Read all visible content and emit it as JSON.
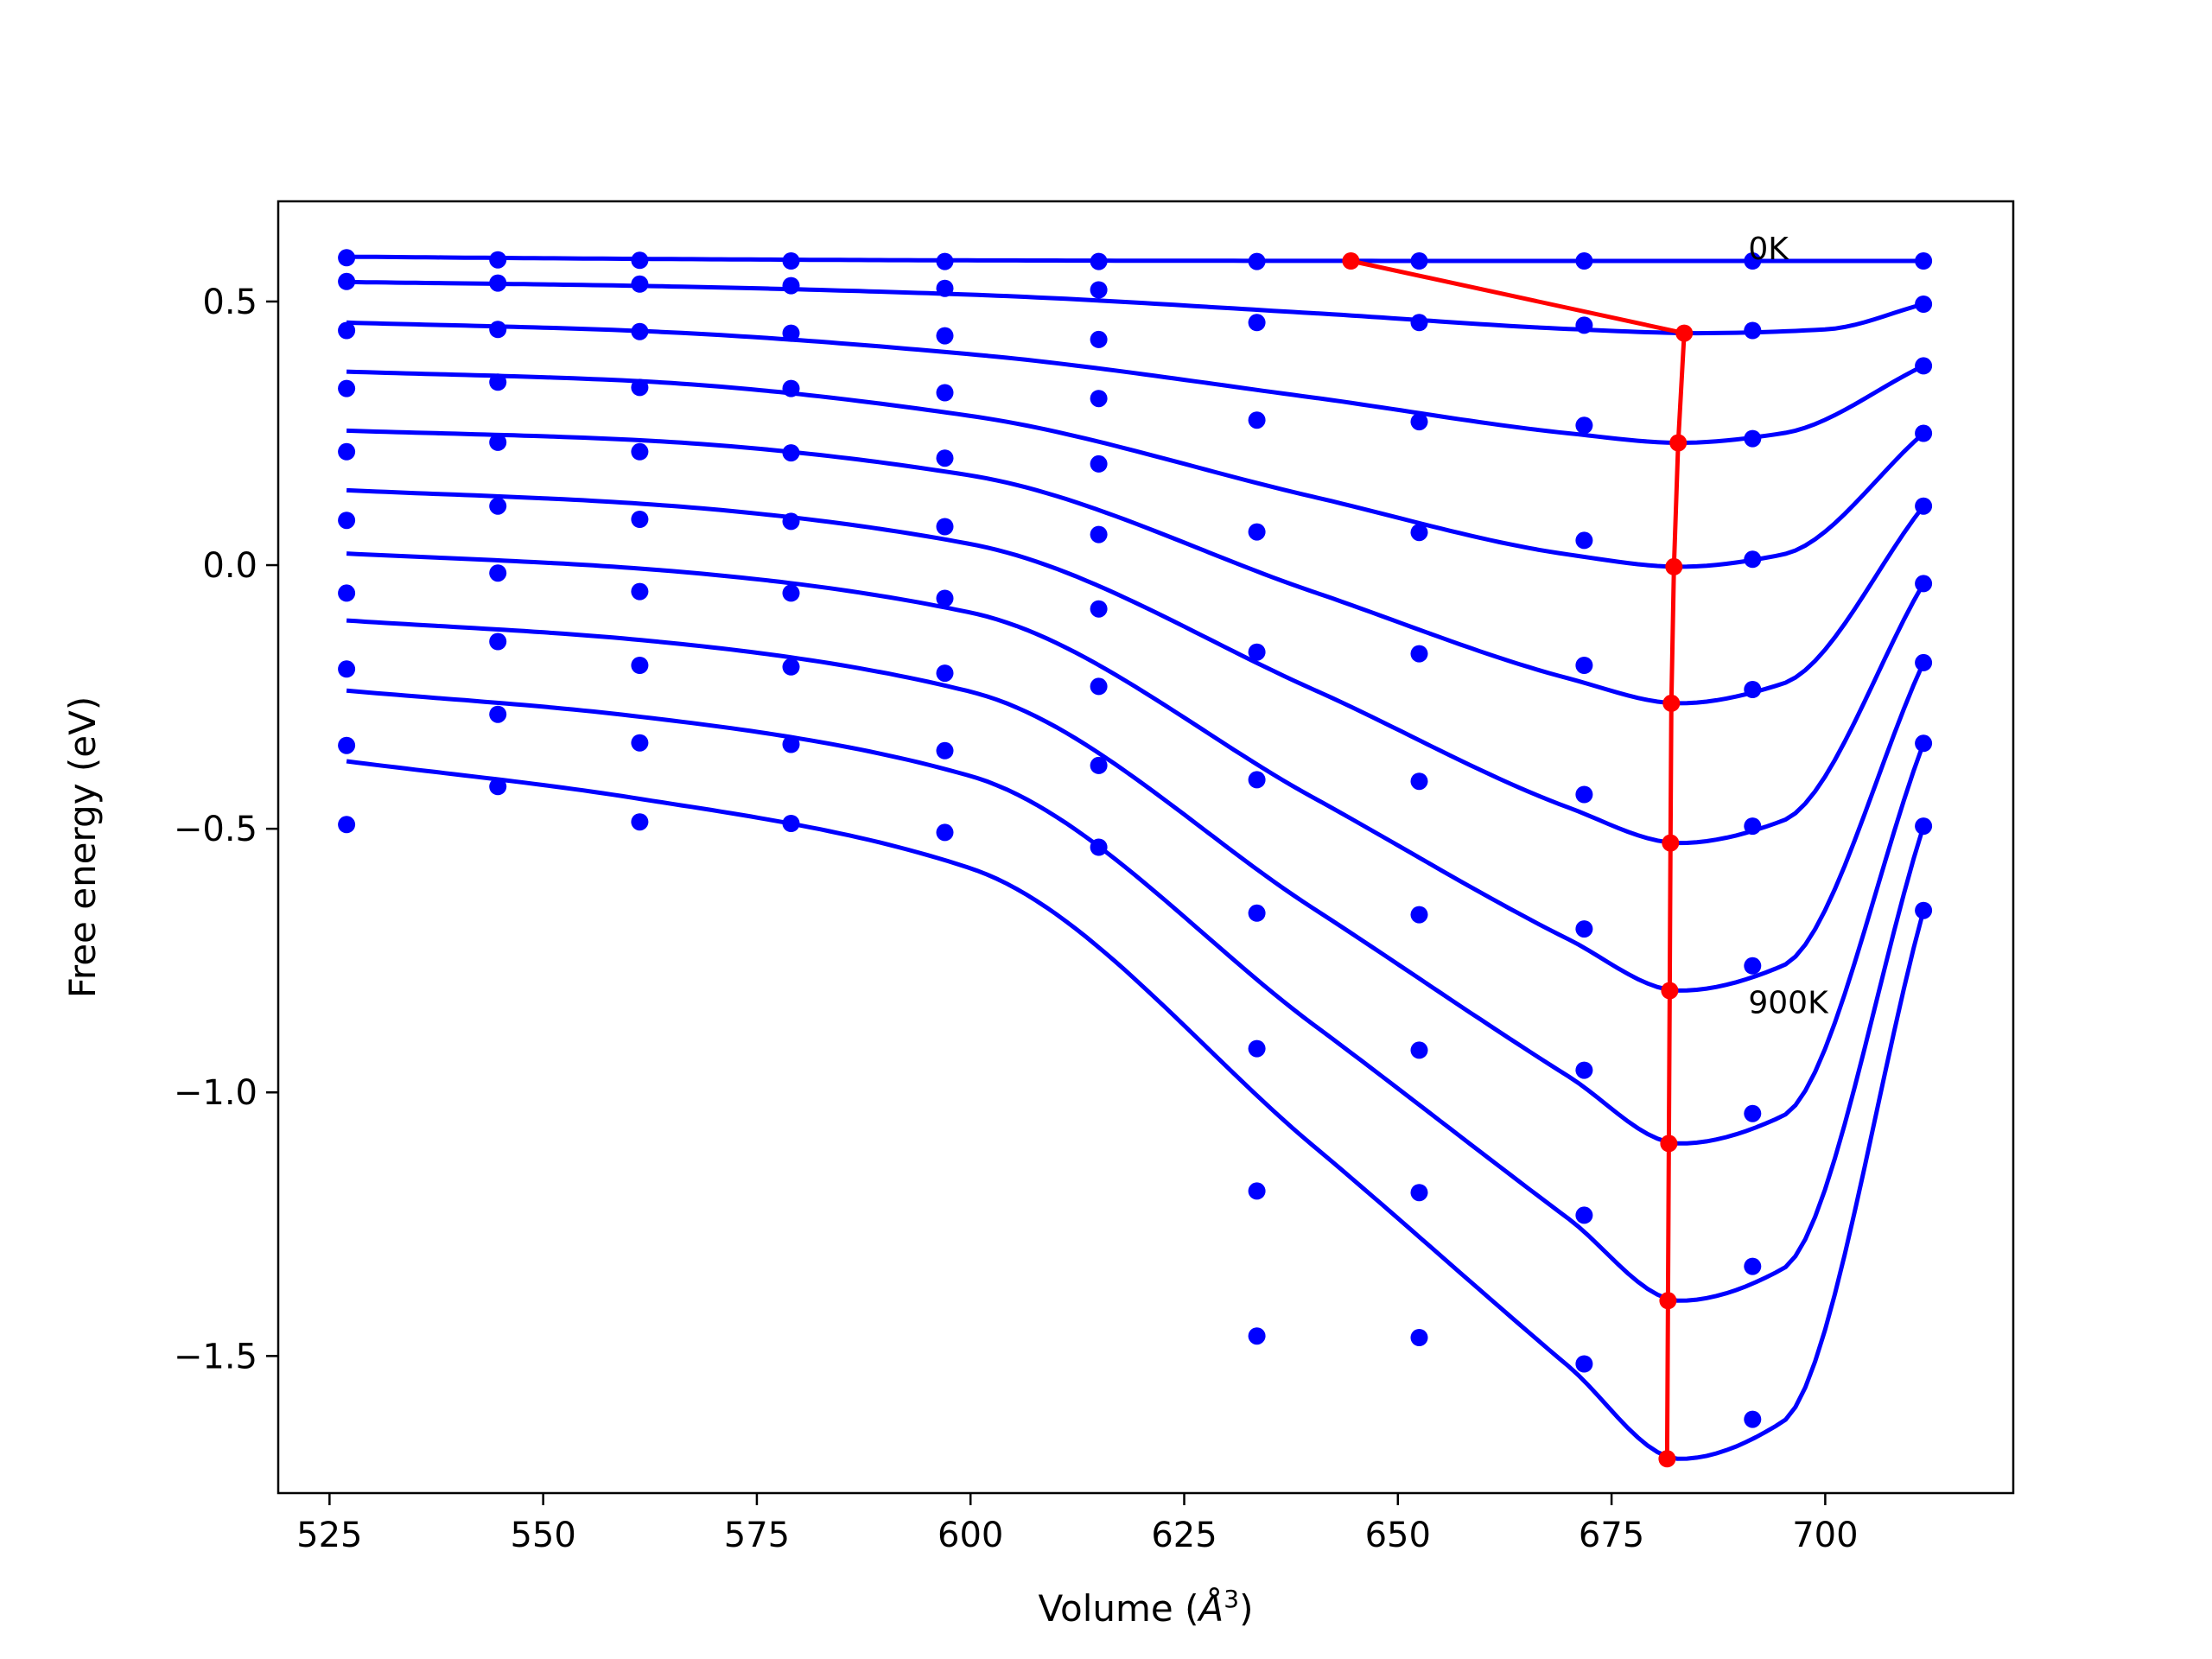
{
  "chart_data": {
    "type": "line",
    "title": "",
    "xlabel_prefix": "Volume (",
    "xlabel_unit_base": "Å",
    "xlabel_unit_exp": "3",
    "xlabel_suffix": ")",
    "ylabel": "Free energy (eV)",
    "xlim": [
      519,
      722
    ],
    "ylim": [
      -1.76,
      0.69
    ],
    "xticks": [
      525,
      550,
      575,
      600,
      625,
      650,
      675,
      700
    ],
    "xtick_labels": [
      "525",
      "550",
      "575",
      "600",
      "625",
      "650",
      "675",
      "700"
    ],
    "yticks": [
      -1.5,
      -1.0,
      -0.5,
      0.0,
      0.5
    ],
    "ytick_labels": [
      "−1.5",
      "−1.0",
      "−0.5",
      "0.0",
      "0.5"
    ],
    "grid": false,
    "colors": {
      "series": "#0000ff",
      "equilibrium": "#ff0000",
      "frame": "#000000"
    },
    "annotations": [
      {
        "text": "0K",
        "x": 691,
        "y": 0.6
      },
      {
        "text": "900K",
        "x": 691,
        "y": -0.83
      }
    ],
    "x": [
      527,
      544.7,
      561.3,
      579,
      597,
      615,
      633.5,
      652.5,
      671.8,
      691.5,
      711.5
    ],
    "series": [
      {
        "values": [
          0.583,
          0.579,
          0.578,
          0.577,
          0.576,
          0.576,
          0.576,
          0.577,
          0.577,
          0.577,
          0.577
        ],
        "curve": [
          [
            527,
            0.585
          ],
          [
            560,
            0.581
          ],
          [
            600,
            0.578
          ],
          [
            650,
            0.577
          ],
          [
            711.5,
            0.577
          ]
        ]
      },
      {
        "values": [
          0.538,
          0.535,
          0.533,
          0.53,
          0.525,
          0.522,
          0.46,
          0.46,
          0.455,
          0.445,
          0.495
        ],
        "curve": [
          [
            527,
            0.537
          ],
          [
            560,
            0.53
          ],
          [
            600,
            0.513
          ],
          [
            640,
            0.478
          ],
          [
            670,
            0.448
          ],
          [
            685,
            0.44
          ],
          [
            700,
            0.447
          ],
          [
            711.5,
            0.495
          ]
        ]
      },
      {
        "values": [
          0.445,
          0.447,
          0.443,
          0.44,
          0.435,
          0.428,
          0.275,
          0.272,
          0.265,
          0.24,
          0.378
        ],
        "curve": [
          [
            527,
            0.46
          ],
          [
            560,
            0.445
          ],
          [
            600,
            0.4
          ],
          [
            640,
            0.318
          ],
          [
            670,
            0.25
          ],
          [
            683,
            0.232
          ],
          [
            695,
            0.25
          ],
          [
            711.5,
            0.378
          ]
        ]
      },
      {
        "values": [
          0.335,
          0.347,
          0.337,
          0.335,
          0.327,
          0.316,
          0.063,
          0.062,
          0.047,
          0.011,
          0.25
        ],
        "curve": [
          [
            527,
            0.367
          ],
          [
            560,
            0.35
          ],
          [
            600,
            0.283
          ],
          [
            640,
            0.13
          ],
          [
            670,
            0.02
          ],
          [
            683,
            -0.003
          ],
          [
            695,
            0.02
          ],
          [
            711.5,
            0.25
          ]
        ]
      },
      {
        "values": [
          0.215,
          0.233,
          0.215,
          0.213,
          0.203,
          0.192,
          -0.165,
          -0.168,
          -0.19,
          -0.236,
          0.112
        ],
        "curve": [
          [
            527,
            0.255
          ],
          [
            560,
            0.238
          ],
          [
            600,
            0.17
          ],
          [
            640,
            -0.05
          ],
          [
            670,
            -0.215
          ],
          [
            683,
            -0.262
          ],
          [
            695,
            -0.225
          ],
          [
            711.5,
            0.112
          ]
        ]
      },
      {
        "values": [
          0.085,
          0.112,
          0.087,
          0.083,
          0.073,
          0.058,
          -0.407,
          -0.41,
          -0.435,
          -0.495,
          -0.035
        ],
        "curve": [
          [
            527,
            0.142
          ],
          [
            560,
            0.118
          ],
          [
            600,
            0.04
          ],
          [
            640,
            -0.235
          ],
          [
            670,
            -0.46
          ],
          [
            683,
            -0.527
          ],
          [
            695,
            -0.485
          ],
          [
            711.5,
            -0.035
          ]
        ]
      },
      {
        "values": [
          -0.053,
          -0.015,
          -0.05,
          -0.053,
          -0.063,
          -0.083,
          -0.66,
          -0.663,
          -0.69,
          -0.76,
          -0.185
        ],
        "curve": [
          [
            527,
            0.022
          ],
          [
            560,
            -0.005
          ],
          [
            600,
            -0.09
          ],
          [
            640,
            -0.44
          ],
          [
            670,
            -0.71
          ],
          [
            683,
            -0.807
          ],
          [
            695,
            -0.76
          ],
          [
            711.5,
            -0.185
          ]
        ]
      },
      {
        "values": [
          -0.197,
          -0.145,
          -0.19,
          -0.193,
          -0.205,
          -0.23,
          -0.917,
          -0.92,
          -0.958,
          -1.04,
          -0.338
        ],
        "curve": [
          [
            527,
            -0.105
          ],
          [
            560,
            -0.14
          ],
          [
            600,
            -0.24
          ],
          [
            640,
            -0.65
          ],
          [
            670,
            -0.97
          ],
          [
            683,
            -1.097
          ],
          [
            695,
            -1.045
          ],
          [
            711.5,
            -0.338
          ]
        ]
      },
      {
        "values": [
          -0.342,
          -0.283,
          -0.337,
          -0.34,
          -0.352,
          -0.38,
          -1.187,
          -1.19,
          -1.233,
          -1.33,
          -0.495
        ],
        "curve": [
          [
            527,
            -0.238
          ],
          [
            560,
            -0.285
          ],
          [
            600,
            -0.4
          ],
          [
            640,
            -0.87
          ],
          [
            670,
            -1.24
          ],
          [
            683,
            -1.395
          ],
          [
            695,
            -1.335
          ],
          [
            711.5,
            -0.495
          ]
        ]
      },
      {
        "values": [
          -0.492,
          -0.42,
          -0.487,
          -0.49,
          -0.507,
          -0.535,
          -1.462,
          -1.465,
          -1.515,
          -1.62,
          -0.655
        ],
        "curve": [
          [
            527,
            -0.372
          ],
          [
            560,
            -0.44
          ],
          [
            600,
            -0.575
          ],
          [
            640,
            -1.1
          ],
          [
            670,
            -1.52
          ],
          [
            683,
            -1.695
          ],
          [
            695,
            -1.625
          ],
          [
            711.5,
            -0.655
          ]
        ]
      }
    ],
    "equilibrium": {
      "x": [
        644.5,
        683.5,
        682.8,
        682.3,
        682.0,
        681.9,
        681.8,
        681.7,
        681.6,
        681.5
      ],
      "y": [
        0.577,
        0.44,
        0.232,
        -0.003,
        -0.262,
        -0.527,
        -0.807,
        -1.097,
        -1.395,
        -1.695
      ]
    }
  }
}
